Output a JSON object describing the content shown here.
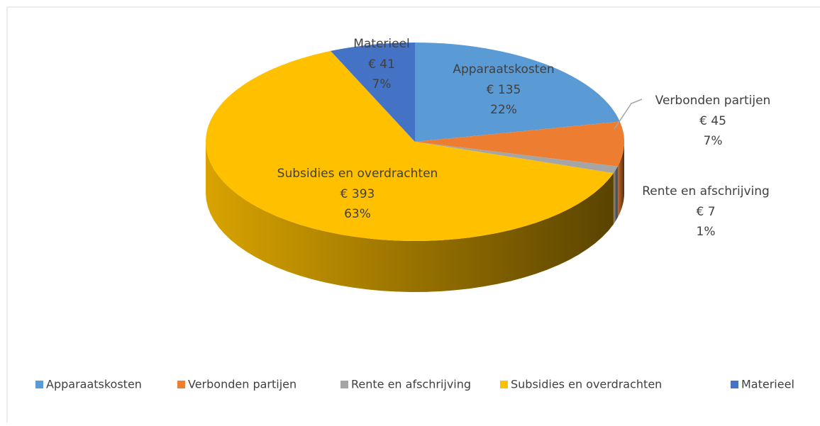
{
  "chart_data": {
    "type": "pie3d",
    "categories": [
      "Apparaatskosten",
      "Verbonden partijen",
      "Rente en afschrijving",
      "Subsidies en overdrachten",
      "Materieel"
    ],
    "values": [
      135,
      45,
      7,
      393,
      41
    ],
    "value_labels": [
      "€ 135",
      "€ 45",
      "€ 7",
      "€ 393",
      "€ 41"
    ],
    "percent_labels": [
      "22%",
      "7%",
      "1%",
      "63%",
      "7%"
    ],
    "colors": [
      "#5b9bd5",
      "#ed7d31",
      "#a5a5a5",
      "#ffc000",
      "#4472c4"
    ],
    "legend": "bottom"
  }
}
